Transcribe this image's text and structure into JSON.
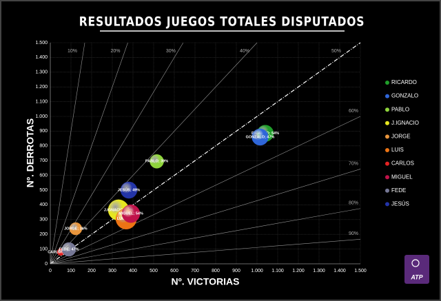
{
  "chart_data": {
    "type": "bubble",
    "title": "RESULTADOS JUEGOS TOTALES DISPUTADOS",
    "x_label": "Nº. VICTORIAS",
    "y_label": "Nº. DERROTAS",
    "logo_text": "ATP",
    "xlim": [
      0,
      1500
    ],
    "ylim": [
      0,
      1500
    ],
    "xticks": [
      0,
      100,
      200,
      300,
      400,
      500,
      600,
      700,
      800,
      900,
      {
        "value": 1000,
        "label": "1.000"
      },
      {
        "value": 1100,
        "label": "1.100"
      },
      {
        "value": 1200,
        "label": "1.200"
      },
      {
        "value": 1300,
        "label": "1.300"
      },
      {
        "value": 1400,
        "label": "1.400"
      },
      {
        "value": 1500,
        "label": "1.500"
      }
    ],
    "yticks": [
      0,
      100,
      200,
      300,
      400,
      500,
      600,
      700,
      800,
      900,
      {
        "value": 1000,
        "label": "1.000"
      },
      {
        "value": 1100,
        "label": "1.100"
      },
      {
        "value": 1200,
        "label": "1.200"
      },
      {
        "value": 1300,
        "label": "1.300"
      },
      {
        "value": 1400,
        "label": "1.400"
      },
      {
        "value": 1500,
        "label": "1.500"
      }
    ],
    "grid": true,
    "legend": "right",
    "ref_lines": [
      {
        "value": 10,
        "label": "10%"
      },
      {
        "value": 20,
        "label": "20%"
      },
      {
        "value": 30,
        "label": "30%"
      },
      {
        "value": 40,
        "label": "40%"
      },
      {
        "value": 50,
        "label": "50%"
      },
      {
        "value": 60,
        "label": "60%"
      },
      {
        "value": 70,
        "label": "70%"
      },
      {
        "value": 80,
        "label": "80%"
      },
      {
        "value": 90,
        "label": "90%"
      }
    ],
    "series": [
      {
        "name": "RICARDO",
        "color": "#1f9e2a",
        "x": [
          1040
        ],
        "values": [
          885
        ],
        "sizes": [
          12
        ],
        "labels": [
          "RICARDO; 54%"
        ]
      },
      {
        "name": "GONZALO",
        "color": "#2f66d8",
        "x": [
          1015
        ],
        "values": [
          860
        ],
        "sizes": [
          12
        ],
        "labels": [
          "GONZALO; 47%"
        ]
      },
      {
        "name": "PABLO",
        "color": "#8fd43c",
        "x": [
          515
        ],
        "values": [
          695
        ],
        "sizes": [
          10
        ],
        "labels": [
          "PABLO; 39%"
        ]
      },
      {
        "name": "J.IGNACIO",
        "color": "#e6e620",
        "x": [
          330
        ],
        "values": [
          365
        ],
        "sizes": [
          15
        ],
        "labels": [
          "J.IGNACIO; 58%"
        ]
      },
      {
        "name": "JORGE",
        "color": "#e8953c",
        "x": [
          123
        ],
        "values": [
          238
        ],
        "sizes": [
          9
        ],
        "labels": [
          "JORGE; 36%"
        ]
      },
      {
        "name": "LUIS",
        "color": "#ec7414",
        "x": [
          367
        ],
        "values": [
          305
        ],
        "sizes": [
          15
        ],
        "labels": [
          "LUIS; 60%"
        ]
      },
      {
        "name": "CARLOS",
        "color": "#e42222",
        "x": [
          50
        ],
        "values": [
          80
        ],
        "sizes": [
          5
        ],
        "labels": [
          "CARLOS; 48%"
        ]
      },
      {
        "name": "MIGUEL",
        "color": "#c0134a",
        "x": [
          390
        ],
        "values": [
          340
        ],
        "sizes": [
          13
        ],
        "labels": [
          "MIGUEL; 54%"
        ]
      },
      {
        "name": "FEDE",
        "color": "#767896",
        "x": [
          90
        ],
        "values": [
          98
        ],
        "sizes": [
          10
        ],
        "labels": [
          "FEDE; 47%"
        ]
      },
      {
        "name": "JESÚS",
        "color": "#2334a8",
        "x": [
          380
        ],
        "values": [
          500
        ],
        "sizes": [
          12
        ],
        "labels": [
          "JESÚS; 49%"
        ]
      }
    ]
  }
}
